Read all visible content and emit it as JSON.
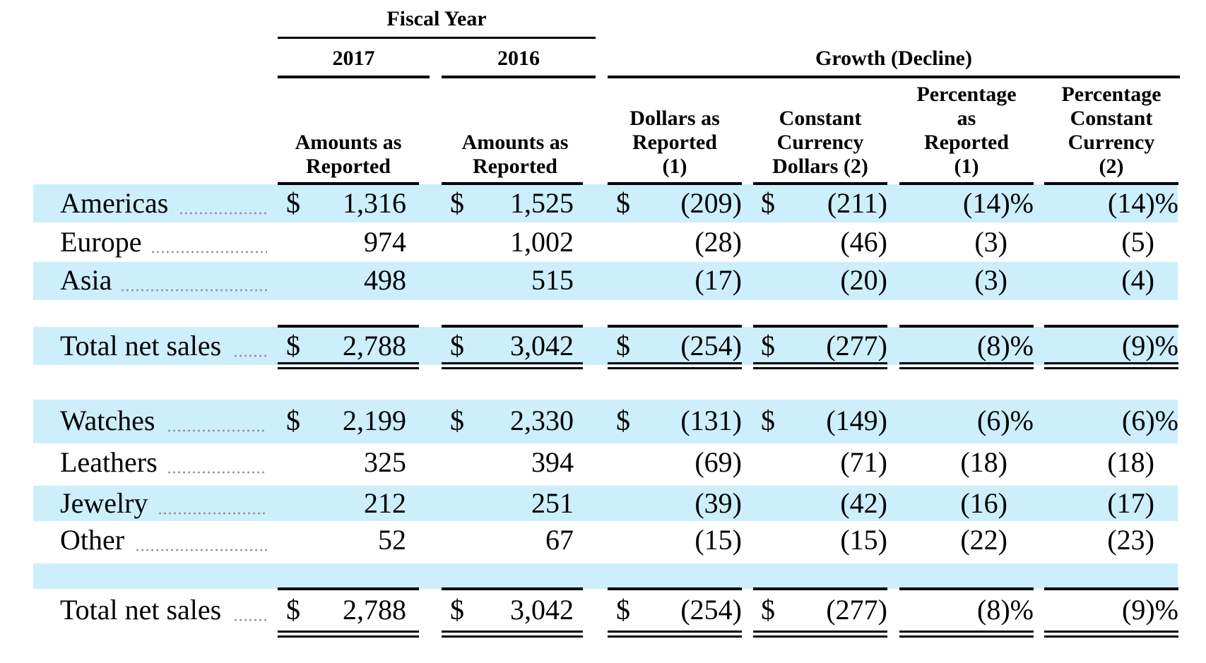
{
  "header": {
    "fiscal_year": "Fiscal Year",
    "year_2017": "2017",
    "year_2016": "2016",
    "growth": "Growth (Decline)",
    "col_2017": "Amounts as\nReported",
    "col_2016": "Amounts as\nReported",
    "col_dollars_reported": "Dollars as\nReported\n(1)",
    "col_cc_dollars": "Constant\nCurrency\nDollars (2)",
    "col_pct_reported": "Percentage\nas\nReported\n(1)",
    "col_pct_cc": "Percentage\nConstant\nCurrency\n(2)"
  },
  "currency_symbol": "$",
  "region_rows": [
    {
      "label": "Americas",
      "v2017": "1,316",
      "v2016": "1,525",
      "dollars": "(209)",
      "cc_dollars": "(211)",
      "pct": "(14)%",
      "pct_cc": "(14)%"
    },
    {
      "label": "Europe",
      "v2017": "974",
      "v2016": "1,002",
      "dollars": "(28)",
      "cc_dollars": "(46)",
      "pct": "(3)",
      "pct_cc": "(5)"
    },
    {
      "label": "Asia",
      "v2017": "498",
      "v2016": "515",
      "dollars": "(17)",
      "cc_dollars": "(20)",
      "pct": "(3)",
      "pct_cc": "(4)"
    }
  ],
  "region_total": {
    "label": "Total net sales",
    "v2017": "2,788",
    "v2016": "3,042",
    "dollars": "(254)",
    "cc_dollars": "(277)",
    "pct": "(8)%",
    "pct_cc": "(9)%"
  },
  "category_rows": [
    {
      "label": "Watches",
      "v2017": "2,199",
      "v2016": "2,330",
      "dollars": "(131)",
      "cc_dollars": "(149)",
      "pct": "(6)%",
      "pct_cc": "(6)%"
    },
    {
      "label": "Leathers",
      "v2017": "325",
      "v2016": "394",
      "dollars": "(69)",
      "cc_dollars": "(71)",
      "pct": "(18)",
      "pct_cc": "(18)"
    },
    {
      "label": "Jewelry",
      "v2017": "212",
      "v2016": "251",
      "dollars": "(39)",
      "cc_dollars": "(42)",
      "pct": "(16)",
      "pct_cc": "(17)"
    },
    {
      "label": "Other",
      "v2017": "52",
      "v2016": "67",
      "dollars": "(15)",
      "cc_dollars": "(15)",
      "pct": "(22)",
      "pct_cc": "(23)"
    }
  ],
  "category_total": {
    "label": "Total net sales",
    "v2017": "2,788",
    "v2016": "3,042",
    "dollars": "(254)",
    "cc_dollars": "(277)",
    "pct": "(8)%",
    "pct_cc": "(9)%"
  },
  "colors": {
    "band": "#cdeefb",
    "rule": "#000000"
  }
}
